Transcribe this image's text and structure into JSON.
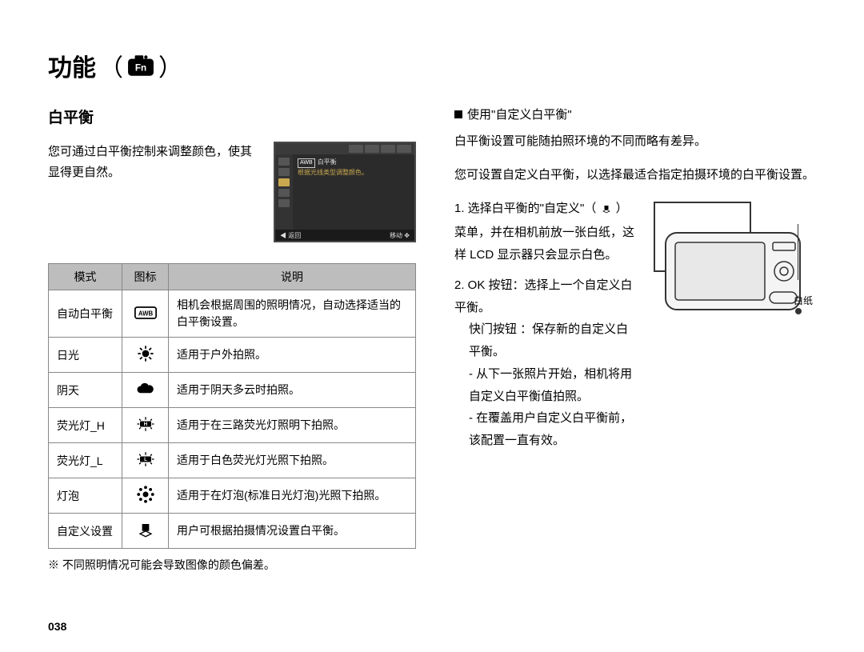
{
  "page": {
    "title_prefix": "功能",
    "title_open": "（",
    "title_close": "）",
    "page_number": "038"
  },
  "left": {
    "section_title": "白平衡",
    "intro": "您可通过白平衡控制来调整颜色，使其显得更自然。",
    "lcd": {
      "title_line": "白平衡",
      "sub_line": "根据光线类型调整颜色。",
      "back": "返回",
      "move": "移动"
    },
    "table": {
      "headers": {
        "mode": "模式",
        "icon": "图标",
        "desc": "说明"
      },
      "rows": [
        {
          "mode": "自动白平衡",
          "icon_key": "awb",
          "desc": "相机会根据周围的照明情况，自动选择适当的白平衡设置。"
        },
        {
          "mode": "日光",
          "icon_key": "sun",
          "desc": "适用于户外拍照。"
        },
        {
          "mode": "阴天",
          "icon_key": "cloud",
          "desc": "适用于阴天多云时拍照。"
        },
        {
          "mode": "荧光灯_H",
          "icon_key": "fl_h",
          "desc": "适用于在三路荧光灯照明下拍照。"
        },
        {
          "mode": "荧光灯_L",
          "icon_key": "fl_l",
          "desc": "适用于白色荧光灯光照下拍照。"
        },
        {
          "mode": "灯泡",
          "icon_key": "bulb",
          "desc": "适用于在灯泡(标准日光灯泡)光照下拍照。"
        },
        {
          "mode": "自定义设置",
          "icon_key": "custom",
          "desc": "用户可根据拍摄情况设置白平衡。"
        }
      ]
    },
    "footnote": "※ 不同照明情况可能会导致图像的颜色偏差。"
  },
  "right": {
    "heading": "使用\"自定义白平衡\"",
    "p1": "白平衡设置可能随拍照环境的不同而略有差异。",
    "p2": "您可设置自定义白平衡，以选择最适合指定拍摄环境的白平衡设置。",
    "step1_a": "1. 选择白平衡的\"自定义\"（",
    "step1_b": "）菜单，并在相机前放一张白纸，这样 LCD 显示器只会显示白色。",
    "step2_a": "2. OK 按钮：选择上一个自定义白平衡。",
    "step2_b": "快门按钮 ：保存新的自定义白平衡。",
    "step2_c": "- 从下一张照片开始，相机将用自定义白平衡值拍照。",
    "step2_d": "- 在覆盖用户自定义白平衡前，该配置一直有效。",
    "camera_label": "白纸"
  },
  "style": {
    "page_bg": "#ffffff",
    "table_header_bg": "#bdbdbd",
    "table_border": "#888888",
    "lcd_bg": "#2b2b2b",
    "text_color": "#000000",
    "icon_color": "#000000"
  }
}
